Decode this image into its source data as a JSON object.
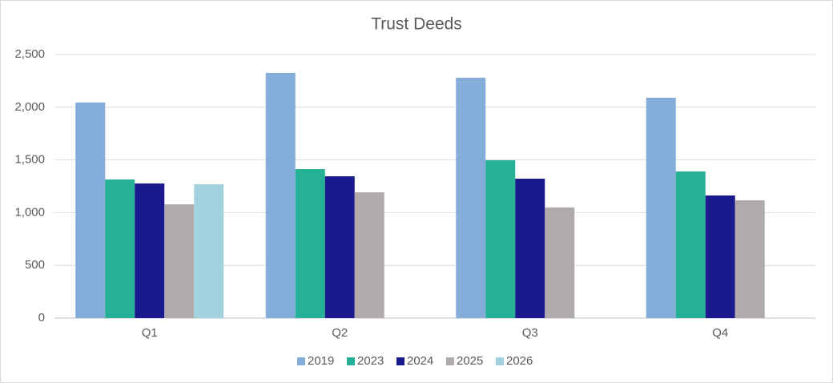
{
  "chart_data": {
    "type": "bar",
    "title": "Trust Deeds",
    "categories": [
      "Q1",
      "Q2",
      "Q3",
      "Q4"
    ],
    "series": [
      {
        "name": "2019",
        "color": "#84aed9",
        "values": [
          2045,
          2325,
          2280,
          2090
        ]
      },
      {
        "name": "2023",
        "color": "#26b095",
        "values": [
          1315,
          1413,
          1497,
          1391
        ]
      },
      {
        "name": "2024",
        "color": "#1a1a8e",
        "values": [
          1277,
          1345,
          1322,
          1163
        ]
      },
      {
        "name": "2025",
        "color": "#b0aaab",
        "values": [
          1079,
          1193,
          1049,
          1117
        ]
      },
      {
        "name": "2026",
        "color": "#a3d1de",
        "values": [
          1269,
          null,
          null,
          null
        ]
      }
    ],
    "ylim": [
      0,
      2500
    ],
    "yticks": [
      0,
      500,
      {
        "value": 1000,
        "label": "1,000"
      },
      {
        "value": 1500,
        "label": "1,500"
      },
      {
        "value": 2000,
        "label": "2,000"
      },
      {
        "value": 2500,
        "label": "2,500"
      }
    ],
    "grid": true,
    "legend": "bottom"
  }
}
